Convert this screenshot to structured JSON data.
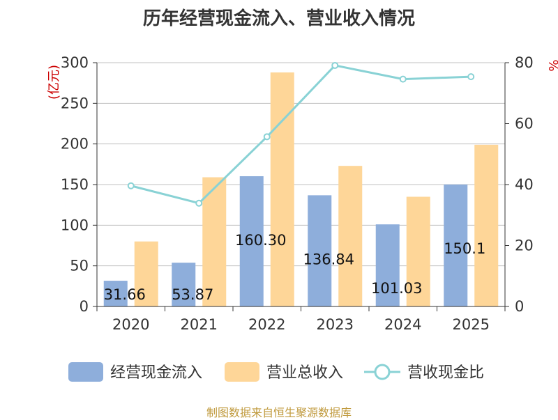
{
  "colors": {
    "bar_cash": "#8eaedb",
    "bar_revenue": "#fed698",
    "line_ratio": "#89d2d5",
    "unit": "#cc0000",
    "source": "#c09a3d",
    "grid": "#c0c0c0",
    "axis": "#333333"
  },
  "chart_data": {
    "type": "bar",
    "title": "历年经营现金流入、营业收入情况",
    "categories": [
      "2020",
      "2021",
      "2022",
      "2023",
      "2024",
      "2025"
    ],
    "y_left": {
      "label": "(亿元)",
      "range": [
        0,
        300
      ],
      "ticks": [
        "0",
        "50",
        "100",
        "150",
        "200",
        "250",
        "300"
      ]
    },
    "y_right": {
      "label": "%",
      "range": [
        0,
        80
      ],
      "ticks": [
        "0",
        "20",
        "40",
        "60",
        "80"
      ]
    },
    "series": [
      {
        "name": "经营现金流入",
        "kind": "bar",
        "axis": "left",
        "values": [
          31.66,
          53.87,
          160.3,
          136.84,
          101.03,
          150.1
        ],
        "data_labels": [
          "31.66",
          "53.87",
          "160.30",
          "136.84",
          "101.03",
          "150.1"
        ]
      },
      {
        "name": "营业总收入",
        "kind": "bar",
        "axis": "left",
        "values": [
          80,
          159,
          288,
          173,
          135,
          199
        ]
      },
      {
        "name": "营收现金比",
        "kind": "line",
        "axis": "right",
        "values": [
          39.6,
          33.9,
          55.7,
          79.1,
          74.6,
          75.4
        ]
      }
    ],
    "legend_position": "bottom",
    "grid": true
  },
  "footer": {
    "source": "制图数据来自恒生聚源数据库"
  }
}
